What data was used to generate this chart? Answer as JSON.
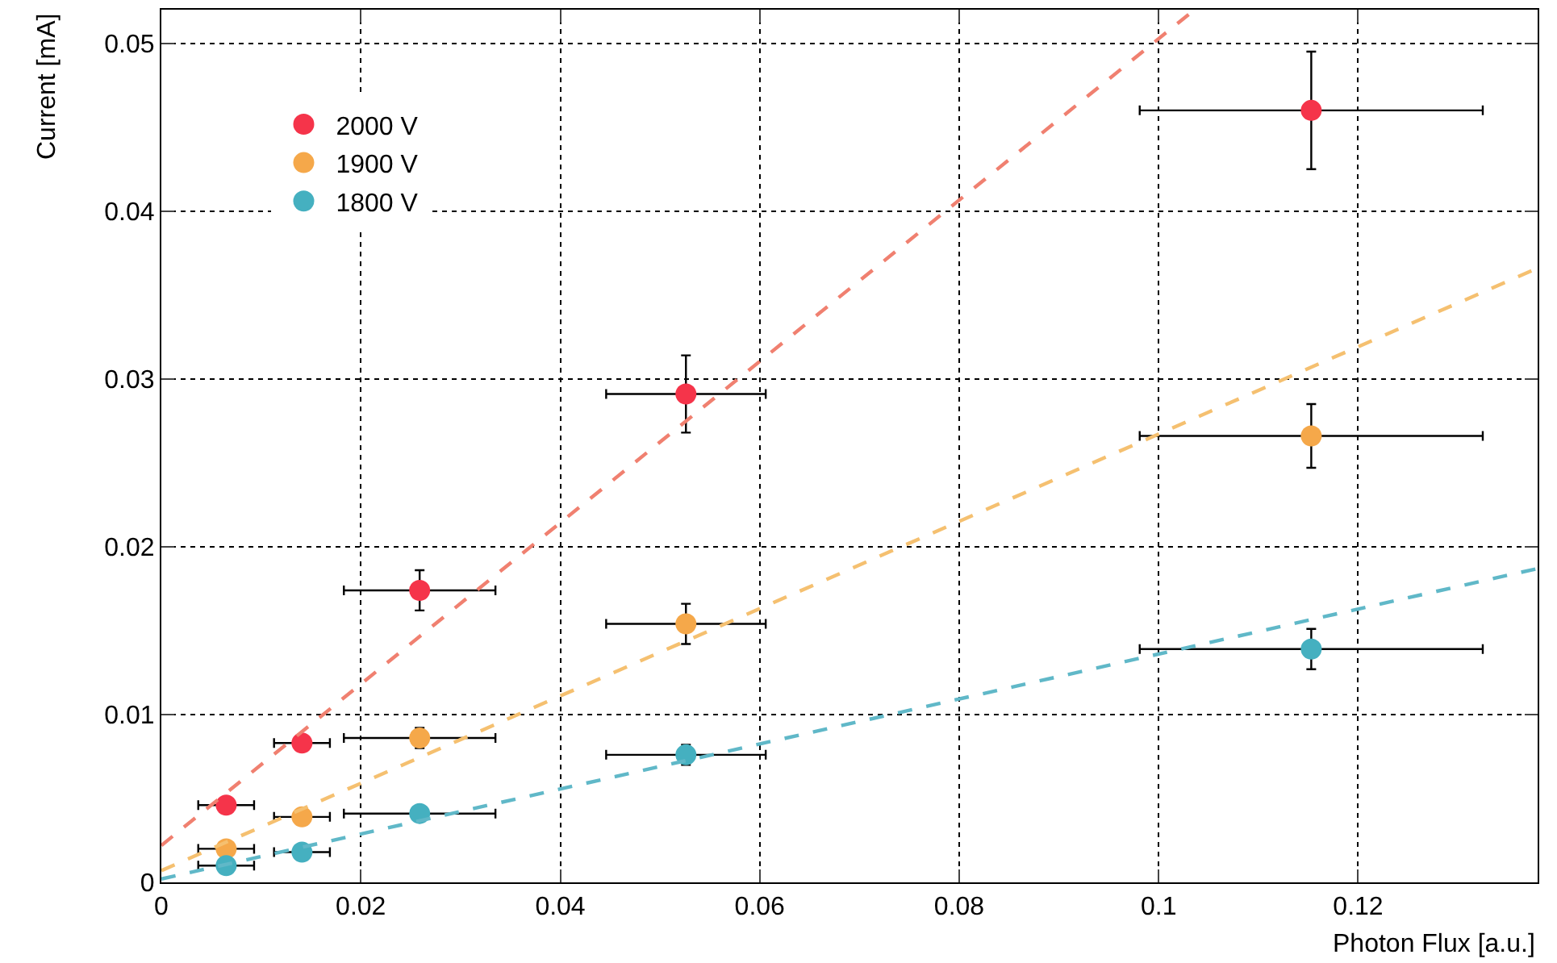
{
  "chart_data": {
    "type": "scatter",
    "xlabel": "Photon Flux [a.u.]",
    "ylabel": "Current [mA]",
    "xlim": [
      0,
      0.138
    ],
    "ylim": [
      0,
      0.052
    ],
    "xticks": [
      0,
      0.02,
      0.04,
      0.06,
      0.08,
      0.1,
      0.12
    ],
    "yticks": [
      0,
      0.01,
      0.02,
      0.03,
      0.04,
      0.05
    ],
    "grid": true,
    "legend": "top left",
    "marker": "circle",
    "series": [
      {
        "name": "2000 V",
        "color": "#f5344a",
        "x": [
          0.0065,
          0.0141,
          0.0259,
          0.0526,
          0.1153
        ],
        "values": [
          0.0046,
          0.0083,
          0.0174,
          0.0291,
          0.046
        ],
        "errors": [
          null,
          null,
          0.0012,
          0.0023,
          0.0035
        ],
        "xerrors": [
          0.0028,
          0.0028,
          0.0076,
          0.008,
          0.0172
        ]
      },
      {
        "name": "1900 V",
        "color": "#f5a84a",
        "x": [
          0.0065,
          0.0141,
          0.0259,
          0.0526,
          0.1153
        ],
        "values": [
          0.002,
          0.0039,
          0.0086,
          0.0154,
          0.0266
        ],
        "errors": [
          null,
          null,
          0.0006,
          0.0012,
          0.0019
        ],
        "xerrors": [
          0.0028,
          0.0028,
          0.0076,
          0.008,
          0.0172
        ]
      },
      {
        "name": "1800 V",
        "color": "#45b0c0",
        "x": [
          0.0065,
          0.0141,
          0.0259,
          0.0526,
          0.1153
        ],
        "values": [
          0.001,
          0.0018,
          0.0041,
          0.0076,
          0.0139
        ],
        "errors": [
          null,
          null,
          null,
          0.0006,
          0.0012
        ],
        "xerrors": [
          0.0028,
          0.0028,
          0.0076,
          0.008,
          0.0172
        ]
      },
      {
        "type": "line",
        "line_style": "dashed",
        "marker": "none",
        "color": "#f08070",
        "x": [
          0,
          0.1036
        ],
        "values": [
          0.0022,
          0.052
        ]
      },
      {
        "type": "line",
        "line_style": "dashed",
        "marker": "none",
        "color": "#f5c070",
        "x": [
          0,
          0.138
        ],
        "values": [
          0.0007,
          0.0366
        ]
      },
      {
        "type": "line",
        "line_style": "dashed",
        "marker": "none",
        "color": "#60b8c8",
        "x": [
          0,
          0.138
        ],
        "values": [
          0.0002,
          0.0187
        ]
      }
    ]
  }
}
